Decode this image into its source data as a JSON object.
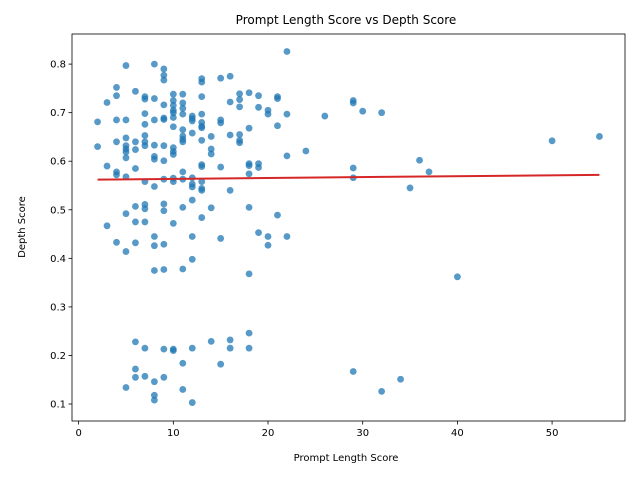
{
  "chart_data": {
    "type": "scatter",
    "title": "Prompt Length Score vs Depth Score",
    "xlabel": "Prompt Length Score",
    "ylabel": "Depth Score",
    "xlim": [
      -0.7,
      57.7
    ],
    "ylim": [
      0.065,
      0.862
    ],
    "xticks": [
      0,
      10,
      20,
      30,
      40,
      50
    ],
    "yticks": [
      0.1,
      0.2,
      0.3,
      0.4,
      0.5,
      0.6,
      0.7,
      0.8
    ],
    "ytick_labels": [
      "0.1",
      "0.2",
      "0.3",
      "0.4",
      "0.5",
      "0.6",
      "0.7",
      "0.8"
    ],
    "grid": false,
    "point_color": "#1f77b4",
    "trend_color": "#d62728",
    "trend_line": {
      "x": [
        2,
        55
      ],
      "y": [
        0.562,
        0.572
      ]
    },
    "points": [
      [
        2,
        0.681
      ],
      [
        2,
        0.63
      ],
      [
        3,
        0.721
      ],
      [
        3,
        0.59
      ],
      [
        3,
        0.467
      ],
      [
        4,
        0.752
      ],
      [
        4,
        0.735
      ],
      [
        4,
        0.685
      ],
      [
        4,
        0.64
      ],
      [
        4,
        0.578
      ],
      [
        4,
        0.572
      ],
      [
        4,
        0.433
      ],
      [
        5,
        0.797
      ],
      [
        5,
        0.685
      ],
      [
        5,
        0.648
      ],
      [
        5,
        0.632
      ],
      [
        5,
        0.625
      ],
      [
        5,
        0.619
      ],
      [
        5,
        0.607
      ],
      [
        5,
        0.568
      ],
      [
        5,
        0.492
      ],
      [
        5,
        0.414
      ],
      [
        5,
        0.134
      ],
      [
        6,
        0.744
      ],
      [
        6,
        0.64
      ],
      [
        6,
        0.624
      ],
      [
        6,
        0.585
      ],
      [
        6,
        0.507
      ],
      [
        6,
        0.475
      ],
      [
        6,
        0.432
      ],
      [
        6,
        0.228
      ],
      [
        6,
        0.172
      ],
      [
        6,
        0.155
      ],
      [
        7,
        0.733
      ],
      [
        7,
        0.728
      ],
      [
        7,
        0.698
      ],
      [
        7,
        0.676
      ],
      [
        7,
        0.653
      ],
      [
        7,
        0.64
      ],
      [
        7,
        0.632
      ],
      [
        7,
        0.558
      ],
      [
        7,
        0.511
      ],
      [
        7,
        0.502
      ],
      [
        7,
        0.475
      ],
      [
        7,
        0.215
      ],
      [
        7,
        0.157
      ],
      [
        8,
        0.8
      ],
      [
        8,
        0.729
      ],
      [
        8,
        0.685
      ],
      [
        8,
        0.633
      ],
      [
        8,
        0.61
      ],
      [
        8,
        0.604
      ],
      [
        8,
        0.548
      ],
      [
        8,
        0.445
      ],
      [
        8,
        0.426
      ],
      [
        8,
        0.375
      ],
      [
        8,
        0.146
      ],
      [
        8,
        0.118
      ],
      [
        8,
        0.108
      ],
      [
        9,
        0.79
      ],
      [
        9,
        0.777
      ],
      [
        9,
        0.767
      ],
      [
        9,
        0.716
      ],
      [
        9,
        0.689
      ],
      [
        9,
        0.686
      ],
      [
        9,
        0.632
      ],
      [
        9,
        0.601
      ],
      [
        9,
        0.563
      ],
      [
        9,
        0.512
      ],
      [
        9,
        0.498
      ],
      [
        9,
        0.429
      ],
      [
        9,
        0.377
      ],
      [
        9,
        0.213
      ],
      [
        9,
        0.155
      ],
      [
        10,
        0.738
      ],
      [
        10,
        0.725
      ],
      [
        10,
        0.715
      ],
      [
        10,
        0.705
      ],
      [
        10,
        0.7
      ],
      [
        10,
        0.69
      ],
      [
        10,
        0.671
      ],
      [
        10,
        0.628
      ],
      [
        10,
        0.62
      ],
      [
        10,
        0.614
      ],
      [
        10,
        0.565
      ],
      [
        10,
        0.558
      ],
      [
        10,
        0.472
      ],
      [
        10,
        0.213
      ],
      [
        10,
        0.21
      ],
      [
        11,
        0.738
      ],
      [
        11,
        0.72
      ],
      [
        11,
        0.709
      ],
      [
        11,
        0.697
      ],
      [
        11,
        0.665
      ],
      [
        11,
        0.652
      ],
      [
        11,
        0.645
      ],
      [
        11,
        0.64
      ],
      [
        11,
        0.578
      ],
      [
        11,
        0.563
      ],
      [
        11,
        0.505
      ],
      [
        11,
        0.378
      ],
      [
        11,
        0.184
      ],
      [
        11,
        0.13
      ],
      [
        12,
        0.693
      ],
      [
        12,
        0.688
      ],
      [
        12,
        0.683
      ],
      [
        12,
        0.658
      ],
      [
        12,
        0.566
      ],
      [
        12,
        0.553
      ],
      [
        12,
        0.547
      ],
      [
        12,
        0.52
      ],
      [
        12,
        0.445
      ],
      [
        12,
        0.398
      ],
      [
        12,
        0.215
      ],
      [
        12,
        0.103
      ],
      [
        13,
        0.77
      ],
      [
        13,
        0.763
      ],
      [
        13,
        0.733
      ],
      [
        13,
        0.697
      ],
      [
        13,
        0.68
      ],
      [
        13,
        0.672
      ],
      [
        13,
        0.669
      ],
      [
        13,
        0.643
      ],
      [
        13,
        0.593
      ],
      [
        13,
        0.589
      ],
      [
        13,
        0.558
      ],
      [
        13,
        0.544
      ],
      [
        13,
        0.54
      ],
      [
        13,
        0.484
      ],
      [
        14,
        0.651
      ],
      [
        14,
        0.625
      ],
      [
        14,
        0.615
      ],
      [
        14,
        0.504
      ],
      [
        14,
        0.229
      ],
      [
        15,
        0.771
      ],
      [
        15,
        0.685
      ],
      [
        15,
        0.679
      ],
      [
        15,
        0.588
      ],
      [
        15,
        0.441
      ],
      [
        15,
        0.182
      ],
      [
        16,
        0.775
      ],
      [
        16,
        0.722
      ],
      [
        16,
        0.654
      ],
      [
        16,
        0.54
      ],
      [
        16,
        0.232
      ],
      [
        16,
        0.215
      ],
      [
        17,
        0.739
      ],
      [
        17,
        0.727
      ],
      [
        17,
        0.712
      ],
      [
        17,
        0.655
      ],
      [
        17,
        0.643
      ],
      [
        17,
        0.638
      ],
      [
        18,
        0.741
      ],
      [
        18,
        0.668
      ],
      [
        18,
        0.595
      ],
      [
        18,
        0.591
      ],
      [
        18,
        0.574
      ],
      [
        18,
        0.505
      ],
      [
        18,
        0.368
      ],
      [
        18,
        0.246
      ],
      [
        18,
        0.215
      ],
      [
        19,
        0.735
      ],
      [
        19,
        0.711
      ],
      [
        19,
        0.595
      ],
      [
        19,
        0.587
      ],
      [
        19,
        0.453
      ],
      [
        20,
        0.705
      ],
      [
        20,
        0.697
      ],
      [
        20,
        0.445
      ],
      [
        20,
        0.427
      ],
      [
        21,
        0.733
      ],
      [
        21,
        0.729
      ],
      [
        21,
        0.673
      ],
      [
        21,
        0.489
      ],
      [
        22,
        0.826
      ],
      [
        22,
        0.697
      ],
      [
        22,
        0.611
      ],
      [
        22,
        0.445
      ],
      [
        24,
        0.621
      ],
      [
        26,
        0.693
      ],
      [
        29,
        0.725
      ],
      [
        29,
        0.72
      ],
      [
        29,
        0.586
      ],
      [
        29,
        0.566
      ],
      [
        29,
        0.167
      ],
      [
        30,
        0.703
      ],
      [
        32,
        0.7
      ],
      [
        32,
        0.126
      ],
      [
        34,
        0.151
      ],
      [
        35,
        0.545
      ],
      [
        36,
        0.602
      ],
      [
        37,
        0.578
      ],
      [
        40,
        0.362
      ],
      [
        50,
        0.642
      ],
      [
        55,
        0.651
      ]
    ]
  }
}
